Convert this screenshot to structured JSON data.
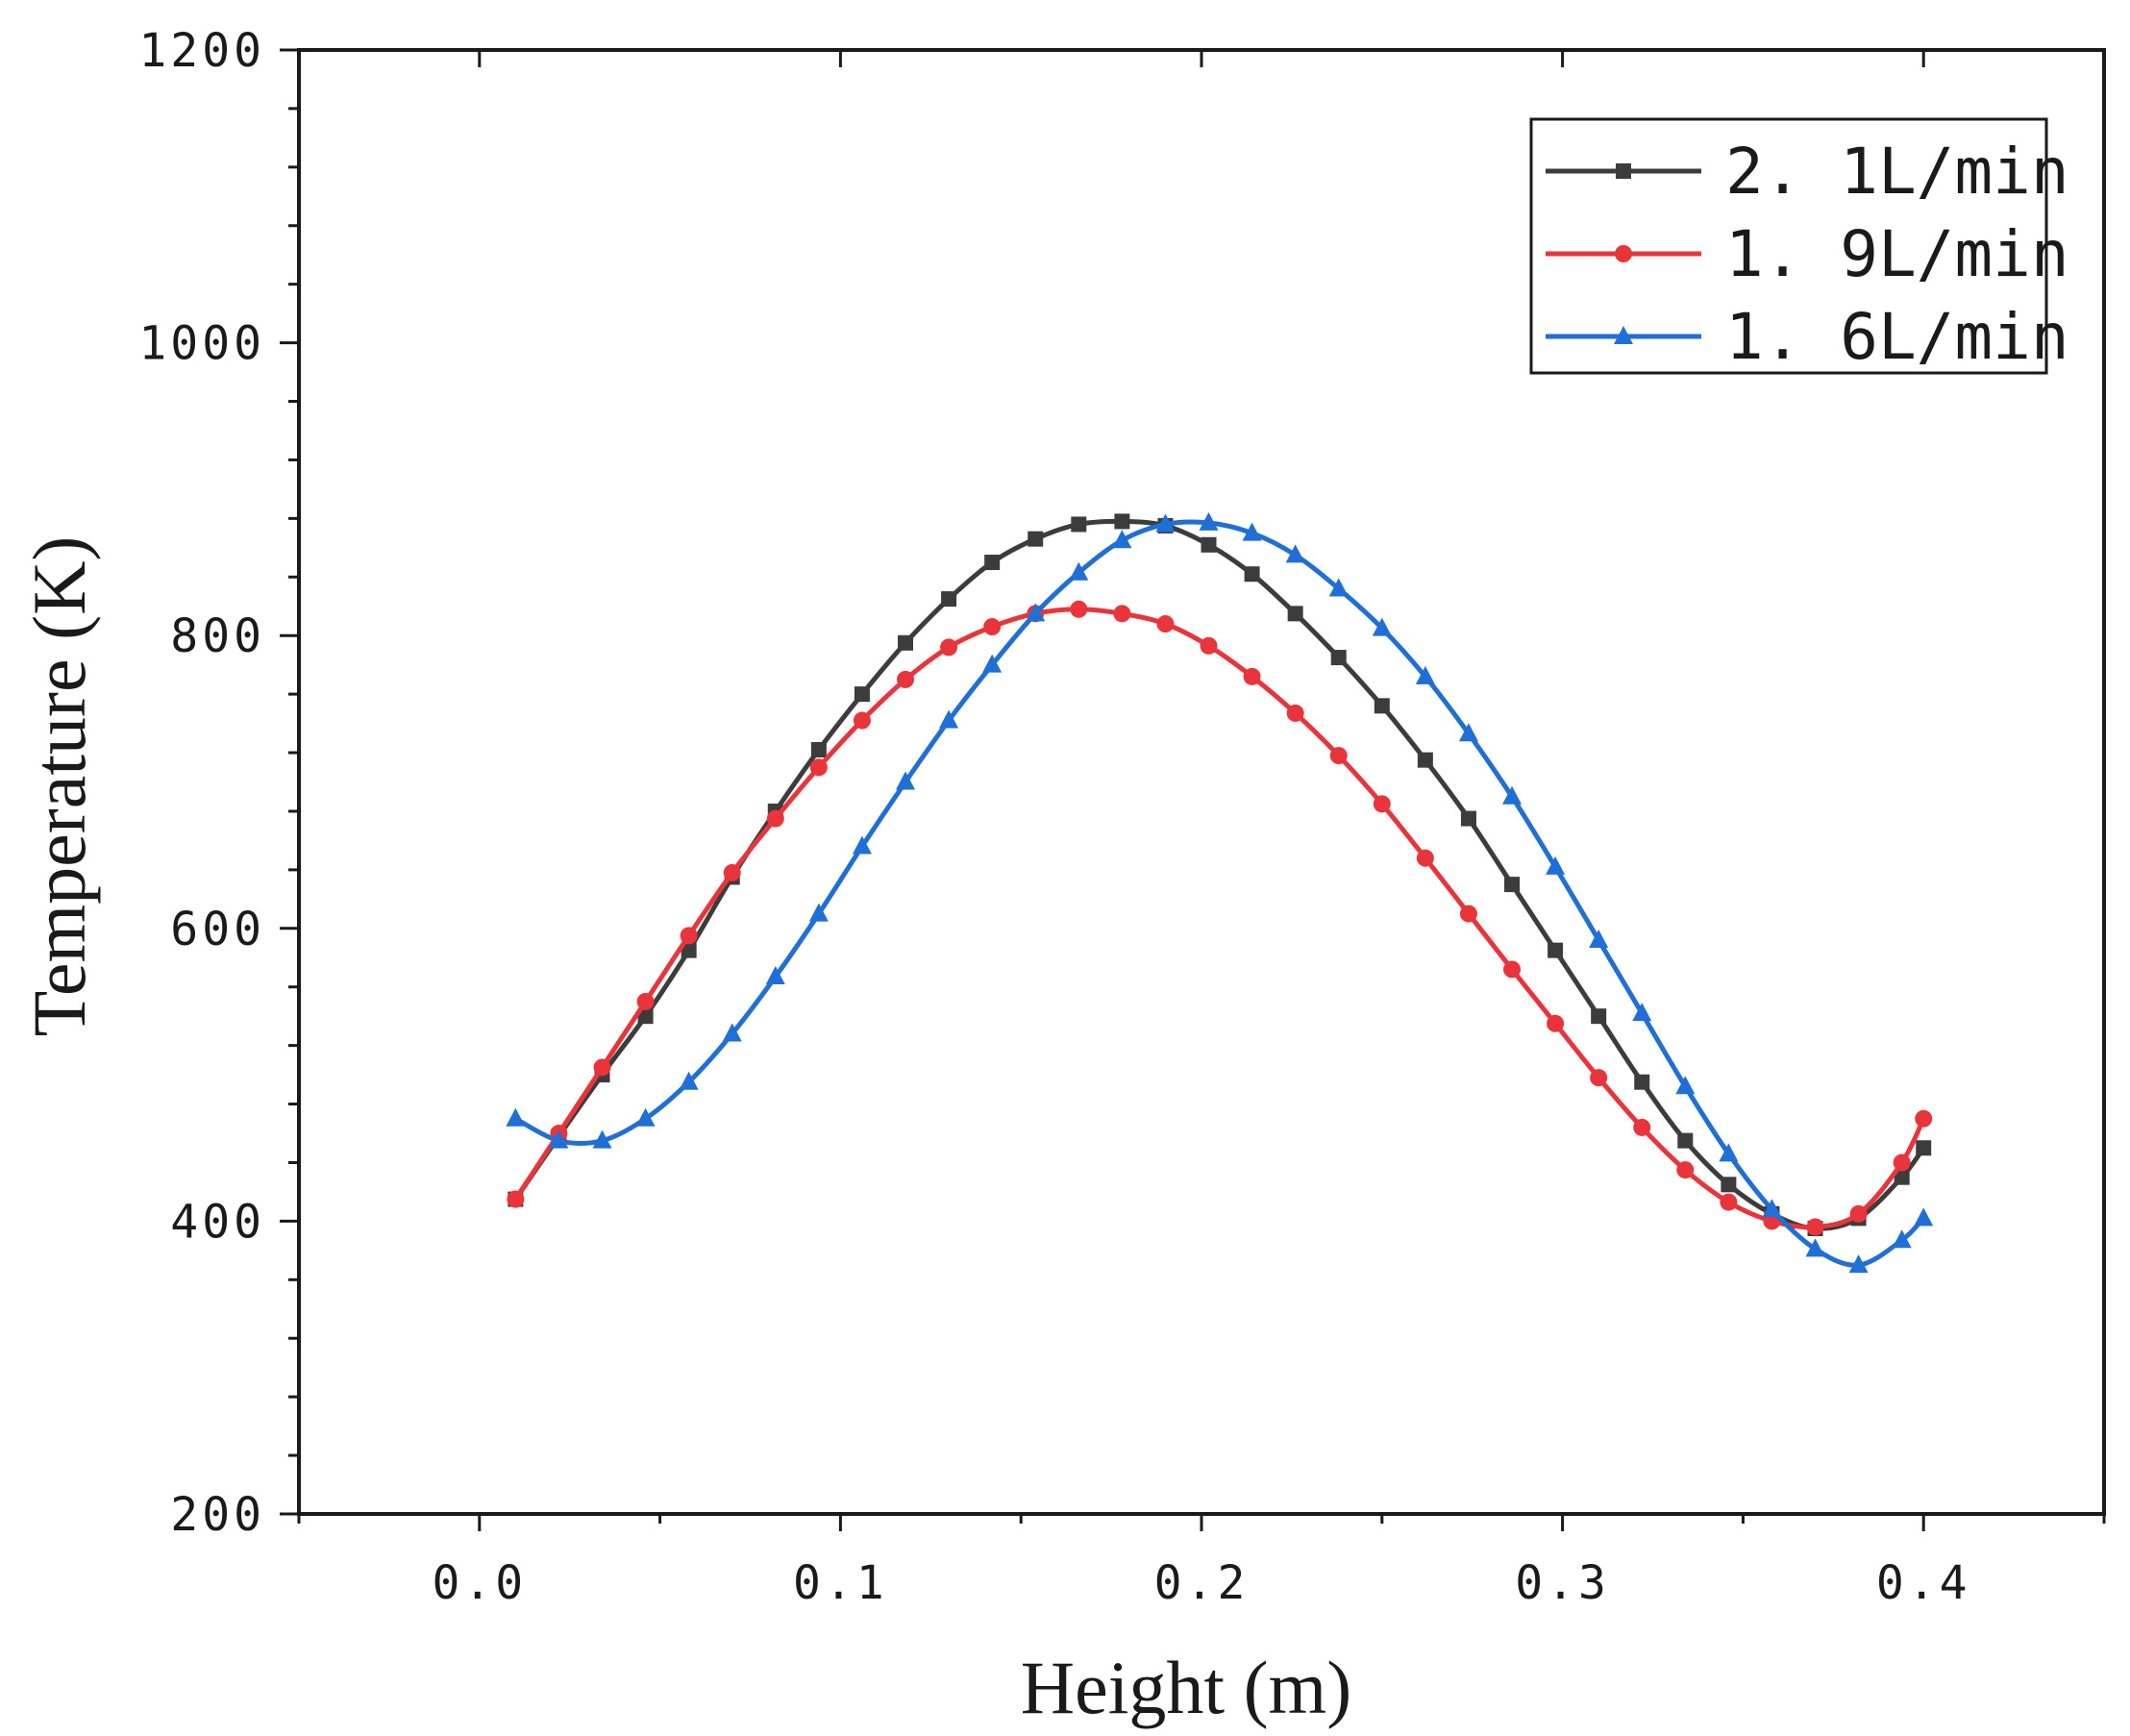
{
  "chart_data": {
    "type": "line",
    "title": "",
    "xlabel": "Height (m)",
    "ylabel": "Temperature (K)",
    "xlim": [
      -0.05,
      0.45
    ],
    "ylim": [
      200,
      1200
    ],
    "x_ticks": [
      "0.0",
      "0.1",
      "0.2",
      "0.3",
      "0.4"
    ],
    "x_tick_values": [
      0.0,
      0.1,
      0.2,
      0.3,
      0.4
    ],
    "y_ticks": [
      "200",
      "400",
      "600",
      "800",
      "1000",
      "1200"
    ],
    "y_tick_values": [
      200,
      400,
      600,
      800,
      1000,
      1200
    ],
    "grid": false,
    "legend_position": "top-right",
    "x": [
      0.01,
      0.022,
      0.034,
      0.046,
      0.058,
      0.07,
      0.082,
      0.094,
      0.106,
      0.118,
      0.13,
      0.142,
      0.154,
      0.166,
      0.178,
      0.19,
      0.202,
      0.214,
      0.226,
      0.238,
      0.25,
      0.262,
      0.274,
      0.286,
      0.298,
      0.31,
      0.322,
      0.334,
      0.346,
      0.358,
      0.37,
      0.382,
      0.394,
      0.4
    ],
    "series": [
      {
        "name": "2. 1L/min",
        "color": "#3c3c3c",
        "marker": "square",
        "values": [
          415,
          458,
          500,
          540,
          585,
          635,
          680,
          722,
          760,
          795,
          825,
          850,
          866,
          876,
          878,
          875,
          862,
          842,
          815,
          785,
          752,
          715,
          675,
          630,
          585,
          540,
          495,
          455,
          425,
          405,
          395,
          402,
          430,
          450
        ]
      },
      {
        "name": "1. 9L/min",
        "color": "#e8343a",
        "marker": "circle",
        "values": [
          415,
          460,
          505,
          550,
          595,
          638,
          675,
          710,
          742,
          770,
          792,
          806,
          815,
          818,
          815,
          808,
          793,
          772,
          747,
          718,
          685,
          648,
          610,
          572,
          535,
          498,
          464,
          435,
          413,
          400,
          396,
          405,
          440,
          470
        ]
      },
      {
        "name": "1. 6L/min",
        "color": "#1f6fd6",
        "marker": "triangle",
        "values": [
          470,
          455,
          455,
          470,
          495,
          528,
          567,
          610,
          656,
          700,
          742,
          780,
          815,
          843,
          865,
          876,
          877,
          870,
          855,
          832,
          805,
          772,
          733,
          690,
          642,
          592,
          542,
          492,
          446,
          408,
          381,
          370,
          387,
          402
        ]
      }
    ]
  }
}
